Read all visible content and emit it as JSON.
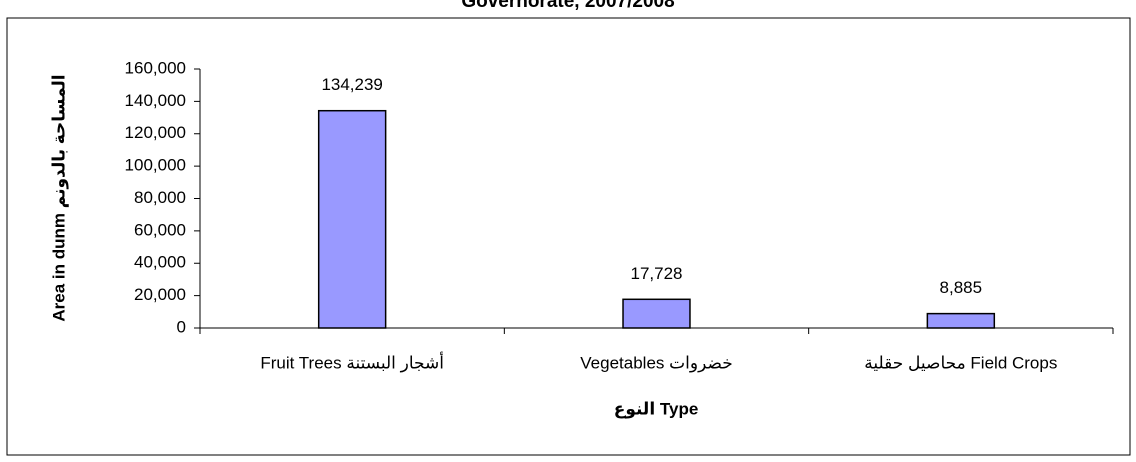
{
  "chart_data": {
    "type": "bar",
    "title": "Governorate, 2007/2008",
    "xlabel": "النوع Type",
    "ylabel": "Area in dunm المساحة بالدونم",
    "categories": [
      "Fruit Trees  أشجار البستنة",
      "Vegetables  خضروات",
      "محاصيل حقلية  Field Crops"
    ],
    "values": [
      134239,
      17728,
      8885
    ],
    "value_labels": [
      "134,239",
      "17,728",
      "8,885"
    ],
    "color": "#9999ff",
    "ylim": [
      0,
      160000
    ],
    "yticks": [
      0,
      {
        "value": 20000,
        "label": "20,000"
      },
      {
        "value": 40000,
        "label": "40,000"
      },
      {
        "value": 60000,
        "label": "60,000"
      },
      {
        "value": 80000,
        "label": "80,000"
      },
      {
        "value": 100000,
        "label": "100,000"
      },
      {
        "value": 120000,
        "label": "120,000"
      },
      {
        "value": 140000,
        "label": "140,000"
      },
      {
        "value": 160000,
        "label": "160,000"
      }
    ],
    "grid": false
  }
}
